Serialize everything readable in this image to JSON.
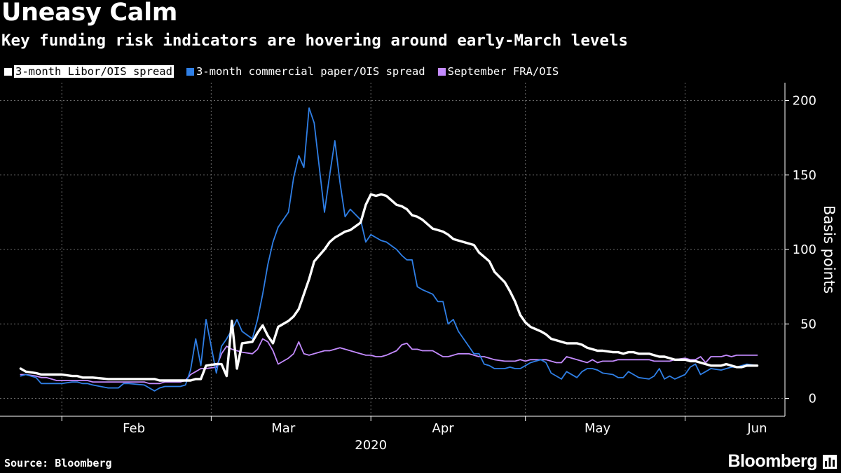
{
  "header": {
    "title": "Uneasy Calm",
    "subtitle": "Key funding risk indicators are hovering around early-March levels"
  },
  "footer": {
    "source": "Source: Bloomberg",
    "brand": "Bloomberg",
    "brand_icon": "bloomberg-chart-icon"
  },
  "colors": {
    "background": "#000000",
    "libor": "#ffffff",
    "cp": "#2f7fe6",
    "fra": "#c48bff",
    "grid": "#6a6a6a"
  },
  "chart_data": {
    "type": "line",
    "title": "Uneasy Calm",
    "subtitle": "Key funding risk indicators are hovering around early-March levels",
    "ylabel": "Basis points",
    "xlabel": "",
    "y_ticks": [
      0,
      50,
      100,
      150,
      200
    ],
    "ylim": [
      -12,
      212
    ],
    "y_axis_side": "right",
    "grid": true,
    "legend": "top-left",
    "x_tick_labels": [
      "Feb",
      "Mar",
      "Apr",
      "May",
      "Jun"
    ],
    "x_year_label": "2020",
    "x": [
      "2020-01-24",
      "2020-01-25",
      "2020-01-27",
      "2020-01-28",
      "2020-01-29",
      "2020-01-30",
      "2020-01-31",
      "2020-02-01",
      "2020-02-03",
      "2020-02-04",
      "2020-02-05",
      "2020-02-06",
      "2020-02-07",
      "2020-02-10",
      "2020-02-11",
      "2020-02-12",
      "2020-02-13",
      "2020-02-14",
      "2020-02-17",
      "2020-02-18",
      "2020-02-19",
      "2020-02-20",
      "2020-02-21",
      "2020-02-24",
      "2020-02-25",
      "2020-02-26",
      "2020-02-27",
      "2020-02-28",
      "2020-02-29",
      "2020-03-02",
      "2020-03-03",
      "2020-03-04",
      "2020-03-05",
      "2020-03-06",
      "2020-03-07",
      "2020-03-09",
      "2020-03-10",
      "2020-03-11",
      "2020-03-12",
      "2020-03-13",
      "2020-03-14",
      "2020-03-16",
      "2020-03-17",
      "2020-03-18",
      "2020-03-19",
      "2020-03-20",
      "2020-03-21",
      "2020-03-23",
      "2020-03-24",
      "2020-03-25",
      "2020-03-26",
      "2020-03-27",
      "2020-03-28",
      "2020-03-30",
      "2020-03-31",
      "2020-04-01",
      "2020-04-02",
      "2020-04-03",
      "2020-04-04",
      "2020-04-06",
      "2020-04-07",
      "2020-04-08",
      "2020-04-09",
      "2020-04-10",
      "2020-04-11",
      "2020-04-13",
      "2020-04-14",
      "2020-04-15",
      "2020-04-16",
      "2020-04-17",
      "2020-04-18",
      "2020-04-20",
      "2020-04-21",
      "2020-04-22",
      "2020-04-23",
      "2020-04-24",
      "2020-04-25",
      "2020-04-27",
      "2020-04-28",
      "2020-04-29",
      "2020-04-30",
      "2020-05-01",
      "2020-05-02",
      "2020-05-04",
      "2020-05-05",
      "2020-05-06",
      "2020-05-07",
      "2020-05-08",
      "2020-05-09",
      "2020-05-11",
      "2020-05-12",
      "2020-05-13",
      "2020-05-14",
      "2020-05-15",
      "2020-05-16",
      "2020-05-18",
      "2020-05-19",
      "2020-05-20",
      "2020-05-21",
      "2020-05-22",
      "2020-05-23",
      "2020-05-25",
      "2020-05-26",
      "2020-05-27",
      "2020-05-28",
      "2020-05-29",
      "2020-05-30",
      "2020-06-01",
      "2020-06-02",
      "2020-06-03",
      "2020-06-04",
      "2020-06-05",
      "2020-06-06",
      "2020-06-08",
      "2020-06-09",
      "2020-06-10",
      "2020-06-11",
      "2020-06-12",
      "2020-06-13",
      "2020-06-15"
    ],
    "series": [
      {
        "name": "3-month Libor/OIS spread",
        "color": "#ffffff",
        "values": [
          20,
          18,
          17,
          16,
          16,
          16,
          16,
          16,
          15,
          15,
          14,
          14,
          14,
          13,
          13,
          13,
          13,
          13,
          13,
          13,
          13,
          12,
          12,
          12,
          12,
          12,
          13,
          13,
          22,
          23,
          23,
          15,
          52,
          20,
          37,
          38,
          44,
          49,
          42,
          37,
          48,
          52,
          55,
          60,
          70,
          80,
          92,
          100,
          105,
          108,
          110,
          112,
          113,
          118,
          130,
          137,
          136,
          137,
          136,
          130,
          129,
          127,
          123,
          122,
          120,
          114,
          113,
          112,
          110,
          107,
          106,
          104,
          103,
          98,
          95,
          92,
          85,
          78,
          72,
          65,
          56,
          51,
          48,
          45,
          43,
          40,
          39,
          38,
          37,
          37,
          36,
          34,
          33,
          32,
          32,
          31,
          31,
          30,
          31,
          31,
          30,
          30,
          29,
          28,
          28,
          27,
          26,
          26,
          25,
          25,
          24,
          23,
          22,
          22,
          23,
          22,
          21,
          21,
          22,
          22
        ]
      },
      {
        "name": "3-month commercial paper/OIS spread",
        "color": "#2f7fe6",
        "values": [
          15,
          16,
          14,
          10,
          10,
          10,
          10,
          10,
          11,
          11,
          10,
          10,
          9,
          7,
          7,
          7,
          10,
          10,
          9,
          7,
          5,
          7,
          8,
          8,
          9,
          19,
          40,
          22,
          53,
          17,
          35,
          40,
          46,
          53,
          45,
          40,
          53,
          70,
          90,
          105,
          115,
          125,
          148,
          163,
          155,
          195,
          185,
          125,
          150,
          173,
          145,
          122,
          127,
          120,
          105,
          110,
          108,
          106,
          105,
          100,
          96,
          93,
          93,
          75,
          73,
          70,
          65,
          65,
          50,
          53,
          45,
          35,
          30,
          30,
          23,
          22,
          20,
          20,
          21,
          20,
          20,
          22,
          24,
          26,
          24,
          17,
          15,
          13,
          18,
          14,
          18,
          20,
          20,
          19,
          17,
          16,
          14,
          14,
          18,
          16,
          14,
          13,
          15,
          20,
          13,
          15,
          13,
          16,
          21,
          23,
          16,
          18,
          20,
          19,
          20,
          21,
          21,
          22,
          23,
          22
        ]
      },
      {
        "name": "September FRA/OIS",
        "color": "#c48bff",
        "values": [
          16,
          16,
          15,
          14,
          14,
          13,
          12,
          12,
          12,
          12,
          12,
          12,
          11,
          11,
          11,
          11,
          11,
          11,
          11,
          10,
          10,
          10,
          11,
          11,
          12,
          16,
          18,
          20,
          20,
          21,
          30,
          35,
          33,
          32,
          31,
          30,
          33,
          40,
          38,
          32,
          23,
          27,
          30,
          38,
          30,
          29,
          30,
          32,
          32,
          33,
          34,
          33,
          32,
          30,
          29,
          29,
          28,
          28,
          29,
          32,
          36,
          37,
          33,
          33,
          32,
          32,
          30,
          28,
          28,
          29,
          30,
          30,
          29,
          28,
          28,
          27,
          26,
          25,
          25,
          25,
          26,
          25,
          26,
          26,
          26,
          25,
          24,
          24,
          28,
          26,
          25,
          24,
          26,
          24,
          25,
          25,
          26,
          26,
          26,
          26,
          26,
          26,
          25,
          25,
          25,
          25,
          26,
          27,
          26,
          26,
          28,
          24,
          28,
          28,
          29,
          28,
          29,
          29,
          29,
          29
        ]
      }
    ]
  }
}
